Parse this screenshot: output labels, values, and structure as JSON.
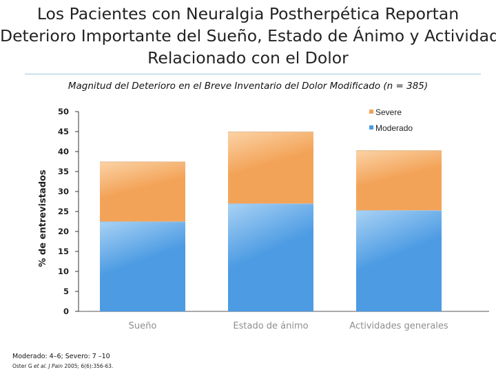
{
  "slide": {
    "title_lines": [
      "Los Pacientes con Neuralgia Postherpética Reportan",
      "Deterioro Importante del Sueño, Estado de Ánimo y Actividad",
      "Relacionado con el Dolor"
    ],
    "footnote": "Moderado: 4–6; Severo: 7 –10",
    "citation_author": "Oster G",
    "citation_etal": "et al.",
    "citation_journal": "J Pain",
    "citation_rest": "2005; 6(6):356-63."
  },
  "colors": {
    "moderado": "#4c9be3",
    "moderado_light": "#a9d2f4",
    "severe": "#f3a358",
    "severe_light": "#fbd3a6"
  },
  "chart_data": {
    "type": "bar",
    "stacked": true,
    "title": "Magnitud del Deterioro en el Breve Inventario del Dolor Modificado (n = 385)",
    "xlabel": "",
    "ylabel": "% de entrevistados",
    "ylim": [
      0,
      50
    ],
    "yticks": [
      0,
      5,
      10,
      15,
      20,
      25,
      30,
      35,
      40,
      45,
      50
    ],
    "categories": [
      "Sueño",
      "Estado de ánimo",
      "Actividades generales"
    ],
    "series": [
      {
        "name": "Moderado",
        "values": [
          22.5,
          27,
          25.3
        ]
      },
      {
        "name": "Severe",
        "values": [
          15,
          18,
          15
        ]
      }
    ],
    "legend": {
      "position": "top-right",
      "entries": [
        "Severe",
        "Moderado"
      ]
    },
    "grid": false
  }
}
